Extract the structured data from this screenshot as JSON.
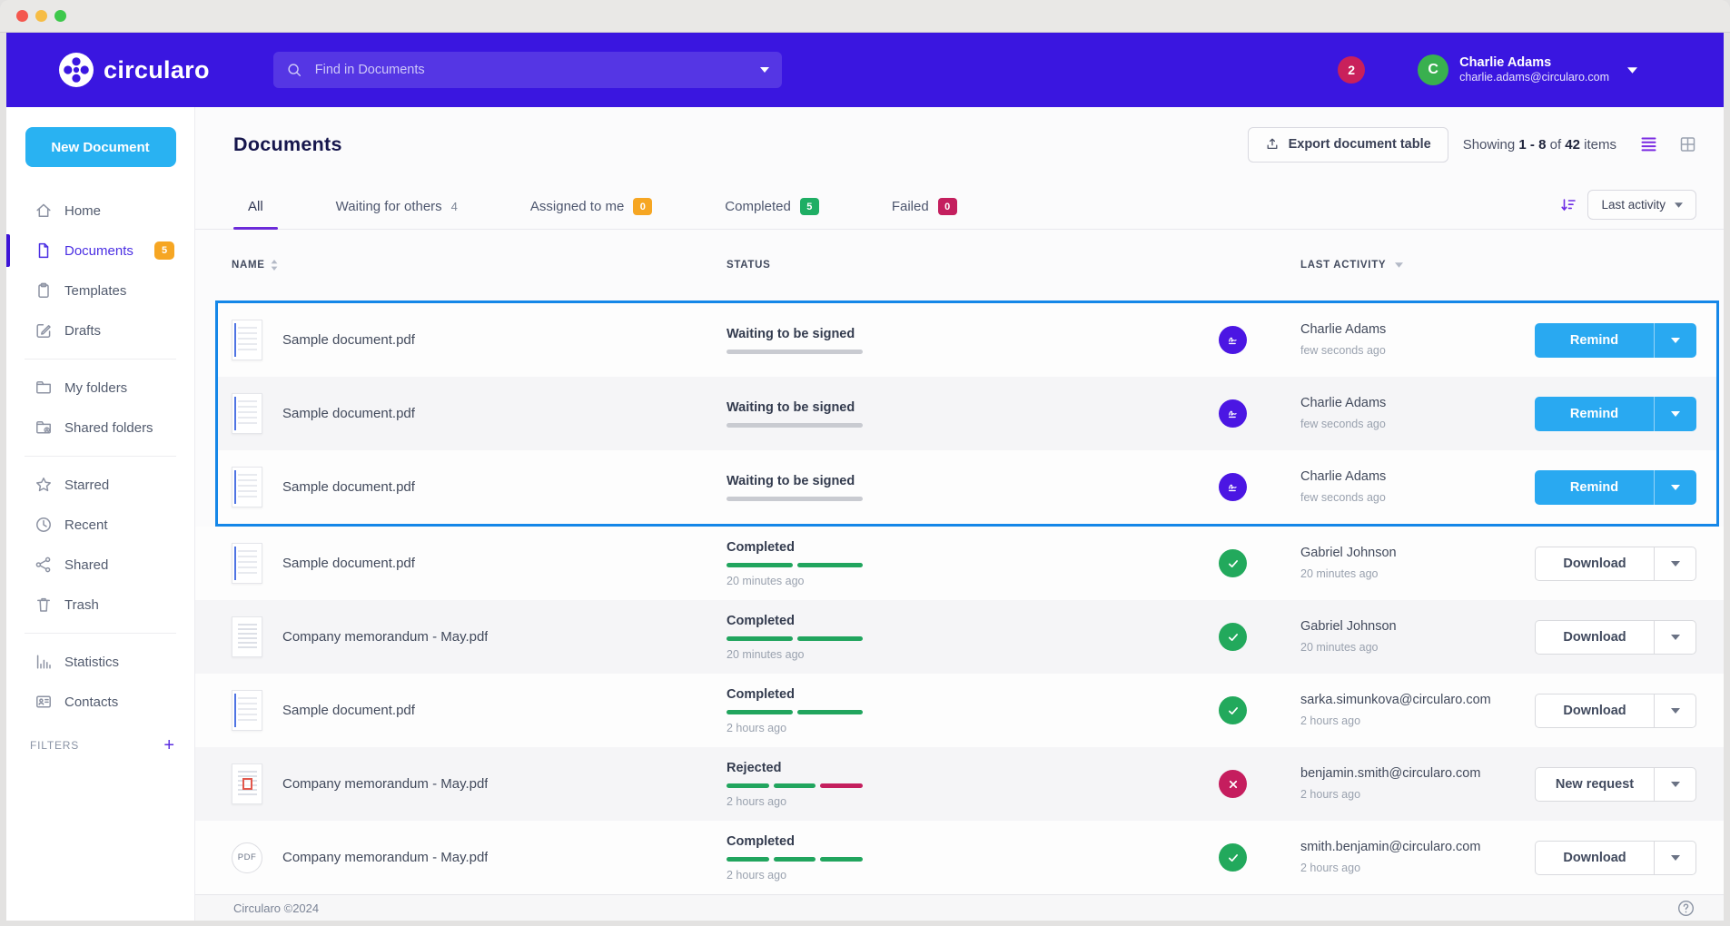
{
  "header": {
    "logo_text": "circularo",
    "search": {
      "placeholder": "Find in Documents"
    },
    "notification_count": "2",
    "user": {
      "initial": "C",
      "name": "Charlie Adams",
      "email": "charlie.adams@circularo.com"
    }
  },
  "sidebar": {
    "new_document_label": "New Document",
    "sections": [
      {
        "items": [
          {
            "label": "Home",
            "icon": "home"
          },
          {
            "label": "Documents",
            "icon": "document",
            "badge": "5",
            "active": true
          },
          {
            "label": "Templates",
            "icon": "clipboard"
          },
          {
            "label": "Drafts",
            "icon": "edit"
          }
        ]
      },
      {
        "items": [
          {
            "label": "My folders",
            "icon": "folder"
          },
          {
            "label": "Shared folders",
            "icon": "shared-folder"
          }
        ]
      },
      {
        "items": [
          {
            "label": "Starred",
            "icon": "star"
          },
          {
            "label": "Recent",
            "icon": "clock"
          },
          {
            "label": "Shared",
            "icon": "share"
          },
          {
            "label": "Trash",
            "icon": "trash"
          }
        ]
      },
      {
        "items": [
          {
            "label": "Statistics",
            "icon": "chart"
          },
          {
            "label": "Contacts",
            "icon": "contacts"
          }
        ]
      }
    ],
    "filters_label": "FILTERS",
    "filters_add_label": "+"
  },
  "main": {
    "title": "Documents",
    "export_button_label": "Export document table",
    "showing": {
      "prefix": "Showing",
      "range": "1 - 8",
      "of": "of",
      "total": "42",
      "suffix": "items"
    },
    "tabs": [
      {
        "label": "All",
        "active": true
      },
      {
        "label": "Waiting for others",
        "count": "4",
        "count_style": "plain"
      },
      {
        "label": "Assigned to me",
        "count": "0",
        "count_style": "orange"
      },
      {
        "label": "Completed",
        "count": "5",
        "count_style": "green"
      },
      {
        "label": "Failed",
        "count": "0",
        "count_style": "crimson"
      }
    ],
    "sort": {
      "label": "Last activity"
    },
    "table": {
      "columns": [
        "NAME",
        "STATUS",
        "LAST ACTIVITY"
      ],
      "pdf_badge_label": "PDF",
      "rows": [
        {
          "name": "Sample document.pdf",
          "thumb": "sample-doc",
          "status": "Waiting to be signed",
          "bar_segments": [
            "gray"
          ],
          "bar_time": "",
          "status_icon": "signature",
          "actor": "Charlie Adams",
          "actor_time": "few seconds ago",
          "action": "Remind",
          "action_style": "primary",
          "highlighted": true,
          "shaded": false
        },
        {
          "name": "Sample document.pdf",
          "thumb": "sample-doc",
          "status": "Waiting to be signed",
          "bar_segments": [
            "gray"
          ],
          "bar_time": "",
          "status_icon": "signature",
          "actor": "Charlie Adams",
          "actor_time": "few seconds ago",
          "action": "Remind",
          "action_style": "primary",
          "highlighted": true,
          "shaded": true
        },
        {
          "name": "Sample document.pdf",
          "thumb": "sample-doc",
          "status": "Waiting to be signed",
          "bar_segments": [
            "gray"
          ],
          "bar_time": "",
          "status_icon": "signature",
          "actor": "Charlie Adams",
          "actor_time": "few seconds ago",
          "action": "Remind",
          "action_style": "primary",
          "highlighted": true,
          "shaded": false
        },
        {
          "name": "Sample document.pdf",
          "thumb": "sample-doc",
          "status": "Completed",
          "bar_segments": [
            "green",
            "green"
          ],
          "bar_time": "20 minutes ago",
          "status_icon": "check",
          "actor": "Gabriel Johnson",
          "actor_time": "20 minutes ago",
          "action": "Download",
          "action_style": "outline",
          "highlighted": false,
          "shaded": false
        },
        {
          "name": "Company memorandum - May.pdf",
          "thumb": "memo",
          "status": "Completed",
          "bar_segments": [
            "green",
            "green"
          ],
          "bar_time": "20 minutes ago",
          "status_icon": "check",
          "actor": "Gabriel Johnson",
          "actor_time": "20 minutes ago",
          "action": "Download",
          "action_style": "outline",
          "highlighted": false,
          "shaded": true
        },
        {
          "name": "Sample document.pdf",
          "thumb": "sample-doc",
          "status": "Completed",
          "bar_segments": [
            "green",
            "green"
          ],
          "bar_time": "2 hours ago",
          "status_icon": "check",
          "actor": "sarka.simunkova@circularo.com",
          "actor_time": "2 hours ago",
          "action": "Download",
          "action_style": "outline",
          "highlighted": false,
          "shaded": false
        },
        {
          "name": "Company memorandum - May.pdf",
          "thumb": "memo-error",
          "status": "Rejected",
          "bar_segments": [
            "green",
            "green",
            "crimson"
          ],
          "bar_time": "2 hours ago",
          "status_icon": "cross",
          "actor": "benjamin.smith@circularo.com",
          "actor_time": "2 hours ago",
          "action": "New request",
          "action_style": "outline",
          "highlighted": false,
          "shaded": true
        },
        {
          "name": "Company memorandum - May.pdf",
          "thumb": "pdf",
          "status": "Completed",
          "bar_segments": [
            "green",
            "green",
            "green"
          ],
          "bar_time": "2 hours ago",
          "status_icon": "check",
          "actor": "smith.benjamin@circularo.com",
          "actor_time": "2 hours ago",
          "action": "Download",
          "action_style": "outline",
          "highlighted": false,
          "shaded": false
        }
      ]
    }
  },
  "footer": {
    "copyright": "Circularo ©2024"
  },
  "colors": {
    "header_purple": "#3a16e0",
    "accent_blue": "#29a9f1",
    "highlight_border": "#1587e8",
    "green": "#21a55e",
    "crimson": "#c41f5e",
    "orange": "#f6a623",
    "active_purple": "#4b2fe3"
  }
}
